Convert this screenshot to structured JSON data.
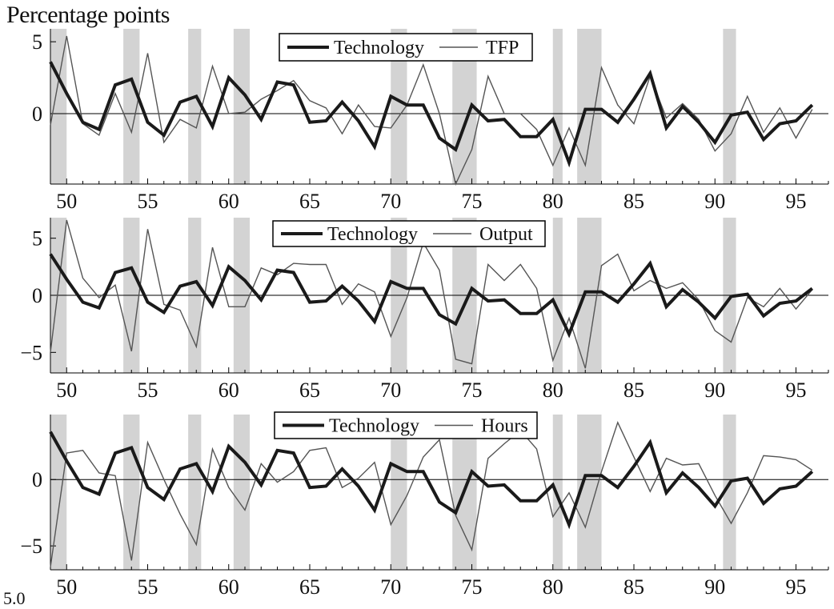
{
  "header": {
    "title": "Percentage points",
    "cut_label": "5.0"
  },
  "style": {
    "recession_color": "#d3d3d3",
    "thick_color": "#1a1a1a",
    "thin_color": "#555555",
    "zero_color": "#000000"
  },
  "chart_data": [
    {
      "type": "line",
      "xlim": [
        49,
        97
      ],
      "ylim": [
        -4.9,
        5.9
      ],
      "yticks": [
        -5,
        0,
        5
      ],
      "xticks": [
        50,
        55,
        60,
        65,
        70,
        75,
        80,
        85,
        90,
        95
      ],
      "recessions": [
        [
          49,
          50
        ],
        [
          53.5,
          54.5
        ],
        [
          57.5,
          58.3
        ],
        [
          60.3,
          61.3
        ],
        [
          70,
          71
        ],
        [
          73.8,
          75.3
        ],
        [
          80,
          80.6
        ],
        [
          81.5,
          83
        ],
        [
          90.5,
          91.3
        ]
      ],
      "series": [
        {
          "name": "Technology",
          "weight": "thick",
          "x": [
            49,
            50,
            51,
            52,
            53,
            54,
            55,
            56,
            57,
            58,
            59,
            60,
            61,
            62,
            63,
            64,
            65,
            66,
            67,
            68,
            69,
            70,
            71,
            72,
            73,
            74,
            75,
            76,
            77,
            78,
            79,
            80,
            81,
            82,
            83,
            84,
            85,
            86,
            87,
            88,
            89,
            90,
            91,
            92,
            93,
            94,
            95,
            96
          ],
          "y": [
            3.6,
            1.4,
            -0.6,
            -1.1,
            2.0,
            2.4,
            -0.6,
            -1.5,
            0.8,
            1.2,
            -0.9,
            2.5,
            1.3,
            -0.4,
            2.2,
            2.0,
            -0.6,
            -0.5,
            0.8,
            -0.5,
            -2.3,
            1.2,
            0.6,
            0.6,
            -1.7,
            -2.5,
            0.6,
            -0.5,
            -0.4,
            -1.6,
            -1.6,
            -0.4,
            -3.4,
            0.3,
            0.3,
            -0.6,
            1.0,
            2.8,
            -1.0,
            0.5,
            -0.6,
            -2.0,
            -0.1,
            0.1,
            -1.8,
            -0.7,
            -0.5,
            0.6
          ]
        },
        {
          "name": "TFP",
          "weight": "thin",
          "x": [
            49,
            50,
            51,
            52,
            53,
            54,
            55,
            56,
            57,
            58,
            59,
            60,
            61,
            62,
            63,
            64,
            65,
            66,
            67,
            68,
            69,
            70,
            71,
            72,
            73,
            74,
            75,
            76,
            77,
            78,
            79,
            80,
            81,
            82,
            83,
            84,
            85,
            86,
            87,
            88,
            89,
            90,
            91,
            92,
            93,
            94,
            95,
            96
          ],
          "y": [
            -0.8,
            5.4,
            -0.7,
            -1.5,
            1.4,
            -1.3,
            4.2,
            -2.0,
            -0.4,
            -1.0,
            3.3,
            0.0,
            0.1,
            1.0,
            1.6,
            2.3,
            0.9,
            0.4,
            -1.4,
            0.6,
            -0.9,
            -1.0,
            0.6,
            3.4,
            0.0,
            -4.9,
            -2.5,
            2.6,
            0.0,
            0.0,
            -1.1,
            -3.6,
            -1.0,
            -3.6,
            3.2,
            0.6,
            -0.7,
            2.6,
            -0.3,
            0.7,
            -0.4,
            -2.6,
            -1.4,
            1.2,
            -1.3,
            0.4,
            -1.7,
            0.3
          ]
        }
      ],
      "legend": "top-center",
      "grid": false
    },
    {
      "type": "line",
      "xlim": [
        49,
        97
      ],
      "ylim": [
        -6.8,
        6.8
      ],
      "yticks": [
        -5,
        0,
        5
      ],
      "xticks": [
        50,
        55,
        60,
        65,
        70,
        75,
        80,
        85,
        90,
        95
      ],
      "recessions": [
        [
          49,
          50
        ],
        [
          53.5,
          54.5
        ],
        [
          57.5,
          58.3
        ],
        [
          60.3,
          61.3
        ],
        [
          70,
          71
        ],
        [
          73.8,
          75.3
        ],
        [
          80,
          80.6
        ],
        [
          81.5,
          83
        ],
        [
          90.5,
          91.3
        ]
      ],
      "series": [
        {
          "name": "Technology",
          "weight": "thick",
          "x": [
            49,
            50,
            51,
            52,
            53,
            54,
            55,
            56,
            57,
            58,
            59,
            60,
            61,
            62,
            63,
            64,
            65,
            66,
            67,
            68,
            69,
            70,
            71,
            72,
            73,
            74,
            75,
            76,
            77,
            78,
            79,
            80,
            81,
            82,
            83,
            84,
            85,
            86,
            87,
            88,
            89,
            90,
            91,
            92,
            93,
            94,
            95,
            96
          ],
          "y": [
            3.6,
            1.4,
            -0.6,
            -1.1,
            2.0,
            2.4,
            -0.6,
            -1.5,
            0.8,
            1.2,
            -0.9,
            2.5,
            1.3,
            -0.4,
            2.2,
            2.0,
            -0.6,
            -0.5,
            0.8,
            -0.5,
            -2.3,
            1.2,
            0.6,
            0.6,
            -1.7,
            -2.5,
            0.6,
            -0.5,
            -0.4,
            -1.6,
            -1.6,
            -0.4,
            -3.4,
            0.3,
            0.3,
            -0.6,
            1.0,
            2.8,
            -1.0,
            0.5,
            -0.6,
            -2.0,
            -0.1,
            0.1,
            -1.8,
            -0.7,
            -0.5,
            0.6
          ]
        },
        {
          "name": "Output",
          "weight": "thin",
          "x": [
            49,
            50,
            51,
            52,
            53,
            54,
            55,
            56,
            57,
            58,
            59,
            60,
            61,
            62,
            63,
            64,
            65,
            66,
            67,
            68,
            69,
            70,
            71,
            72,
            73,
            74,
            75,
            76,
            77,
            78,
            79,
            80,
            81,
            82,
            83,
            84,
            85,
            86,
            87,
            88,
            89,
            90,
            91,
            92,
            93,
            94,
            95,
            96
          ],
          "y": [
            -5.0,
            6.6,
            1.5,
            -0.2,
            0.9,
            -4.9,
            5.8,
            -0.8,
            -1.3,
            -4.5,
            4.2,
            -1.0,
            -1.0,
            2.4,
            1.8,
            2.8,
            2.7,
            2.7,
            -0.8,
            1.0,
            0.3,
            -3.6,
            -0.2,
            4.6,
            2.2,
            -5.6,
            -6.0,
            2.7,
            1.3,
            2.7,
            0.6,
            -5.7,
            -2.0,
            -6.4,
            2.6,
            3.6,
            0.4,
            1.3,
            0.6,
            1.1,
            -0.4,
            -3.1,
            -4.1,
            -0.2,
            -1.0,
            0.6,
            -1.2,
            0.5
          ]
        }
      ],
      "legend": "top-center",
      "grid": false
    },
    {
      "type": "line",
      "xlim": [
        49,
        97
      ],
      "ylim": [
        -6.8,
        4.9
      ],
      "yticks": [
        -5,
        0,
        5
      ],
      "xticks": [
        50,
        55,
        60,
        65,
        70,
        75,
        80,
        85,
        90,
        95
      ],
      "recessions": [
        [
          49,
          50
        ],
        [
          53.5,
          54.5
        ],
        [
          57.5,
          58.3
        ],
        [
          60.3,
          61.3
        ],
        [
          70,
          71
        ],
        [
          73.8,
          75.3
        ],
        [
          80,
          80.6
        ],
        [
          81.5,
          83
        ],
        [
          90.5,
          91.3
        ]
      ],
      "series": [
        {
          "name": "Technology",
          "weight": "thick",
          "x": [
            49,
            50,
            51,
            52,
            53,
            54,
            55,
            56,
            57,
            58,
            59,
            60,
            61,
            62,
            63,
            64,
            65,
            66,
            67,
            68,
            69,
            70,
            71,
            72,
            73,
            74,
            75,
            76,
            77,
            78,
            79,
            80,
            81,
            82,
            83,
            84,
            85,
            86,
            87,
            88,
            89,
            90,
            91,
            92,
            93,
            94,
            95,
            96
          ],
          "y": [
            3.6,
            1.4,
            -0.6,
            -1.1,
            2.0,
            2.4,
            -0.6,
            -1.5,
            0.8,
            1.2,
            -0.9,
            2.5,
            1.3,
            -0.4,
            2.2,
            2.0,
            -0.6,
            -0.5,
            0.8,
            -0.5,
            -2.3,
            1.2,
            0.6,
            0.6,
            -1.7,
            -2.5,
            0.6,
            -0.5,
            -0.4,
            -1.6,
            -1.6,
            -0.4,
            -3.4,
            0.3,
            0.3,
            -0.6,
            1.0,
            2.8,
            -1.0,
            0.5,
            -0.6,
            -2.0,
            -0.1,
            0.1,
            -1.8,
            -0.7,
            -0.5,
            0.6
          ]
        },
        {
          "name": "Hours",
          "weight": "thin",
          "x": [
            49,
            50,
            51,
            52,
            53,
            54,
            55,
            56,
            57,
            58,
            59,
            60,
            61,
            62,
            63,
            64,
            65,
            66,
            67,
            68,
            69,
            70,
            71,
            72,
            73,
            74,
            75,
            76,
            77,
            78,
            79,
            80,
            81,
            82,
            83,
            84,
            85,
            86,
            87,
            88,
            89,
            90,
            91,
            92,
            93,
            94,
            95,
            96
          ],
          "y": [
            -6.6,
            2.0,
            2.2,
            0.5,
            0.3,
            -6.1,
            2.8,
            0.0,
            -2.6,
            -4.9,
            2.3,
            -0.6,
            -2.3,
            1.2,
            -0.2,
            0.6,
            2.2,
            2.4,
            -0.6,
            0.1,
            1.3,
            -3.4,
            -1.2,
            1.7,
            3.0,
            -2.7,
            -5.3,
            1.6,
            2.7,
            3.7,
            2.3,
            -2.8,
            -1.0,
            -3.6,
            0.6,
            4.3,
            1.7,
            -0.9,
            1.6,
            1.1,
            1.2,
            -1.2,
            -3.3,
            -1.0,
            1.8,
            1.7,
            1.5,
            0.7
          ]
        }
      ],
      "legend": "top-center",
      "grid": false
    }
  ]
}
